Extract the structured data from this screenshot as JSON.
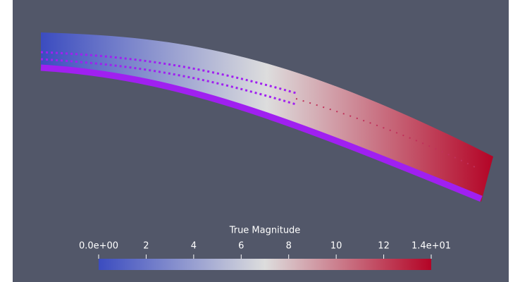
{
  "colorbar": {
    "title": "True Magnitude",
    "range": [
      0,
      14
    ],
    "ticks": [
      {
        "value": 0,
        "label": "0.0e+00"
      },
      2,
      4,
      6,
      8,
      10,
      12,
      {
        "value": 14,
        "label": "1.4e+01"
      }
    ],
    "colors": [
      "#3b4cc0",
      "#dddddd",
      "#b40426"
    ]
  }
}
